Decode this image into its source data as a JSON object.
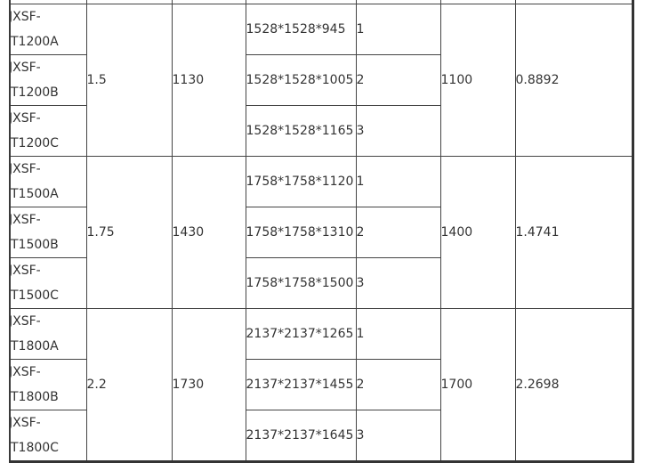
{
  "groups": [
    {
      "spec": "1.5",
      "value3": "1130",
      "value6": "1100",
      "value7": "0.8892",
      "items": [
        {
          "model_a": "JXSF-",
          "model_b": "T1200A",
          "dims": "1528*1528*945",
          "qty": "1"
        },
        {
          "model_a": "JXSF-",
          "model_b": "T1200B",
          "dims": "1528*1528*1005",
          "qty": "2"
        },
        {
          "model_a": "JXSF-",
          "model_b": "T1200C",
          "dims": "1528*1528*1165",
          "qty": "3"
        }
      ]
    },
    {
      "spec": "1.75",
      "value3": "1430",
      "value6": "1400",
      "value7": "1.4741",
      "items": [
        {
          "model_a": "JXSF-",
          "model_b": "T1500A",
          "dims": "1758*1758*1120",
          "qty": "1"
        },
        {
          "model_a": "JXSF-",
          "model_b": "T1500B",
          "dims": "1758*1758*1310",
          "qty": "2"
        },
        {
          "model_a": "JXSF-",
          "model_b": "T1500C",
          "dims": "1758*1758*1500",
          "qty": "3"
        }
      ]
    },
    {
      "spec": "2.2",
      "value3": "1730",
      "value6": "1700",
      "value7": "2.2698",
      "items": [
        {
          "model_a": "JXSF-",
          "model_b": "T1800A",
          "dims": "2137*2137*1265",
          "qty": "1"
        },
        {
          "model_a": "JXSF-",
          "model_b": "T1800B",
          "dims": "2137*2137*1455",
          "qty": "2"
        },
        {
          "model_a": "JXSF-",
          "model_b": "T1800C",
          "dims": "2137*2137*1645",
          "qty": "3"
        }
      ]
    }
  ]
}
